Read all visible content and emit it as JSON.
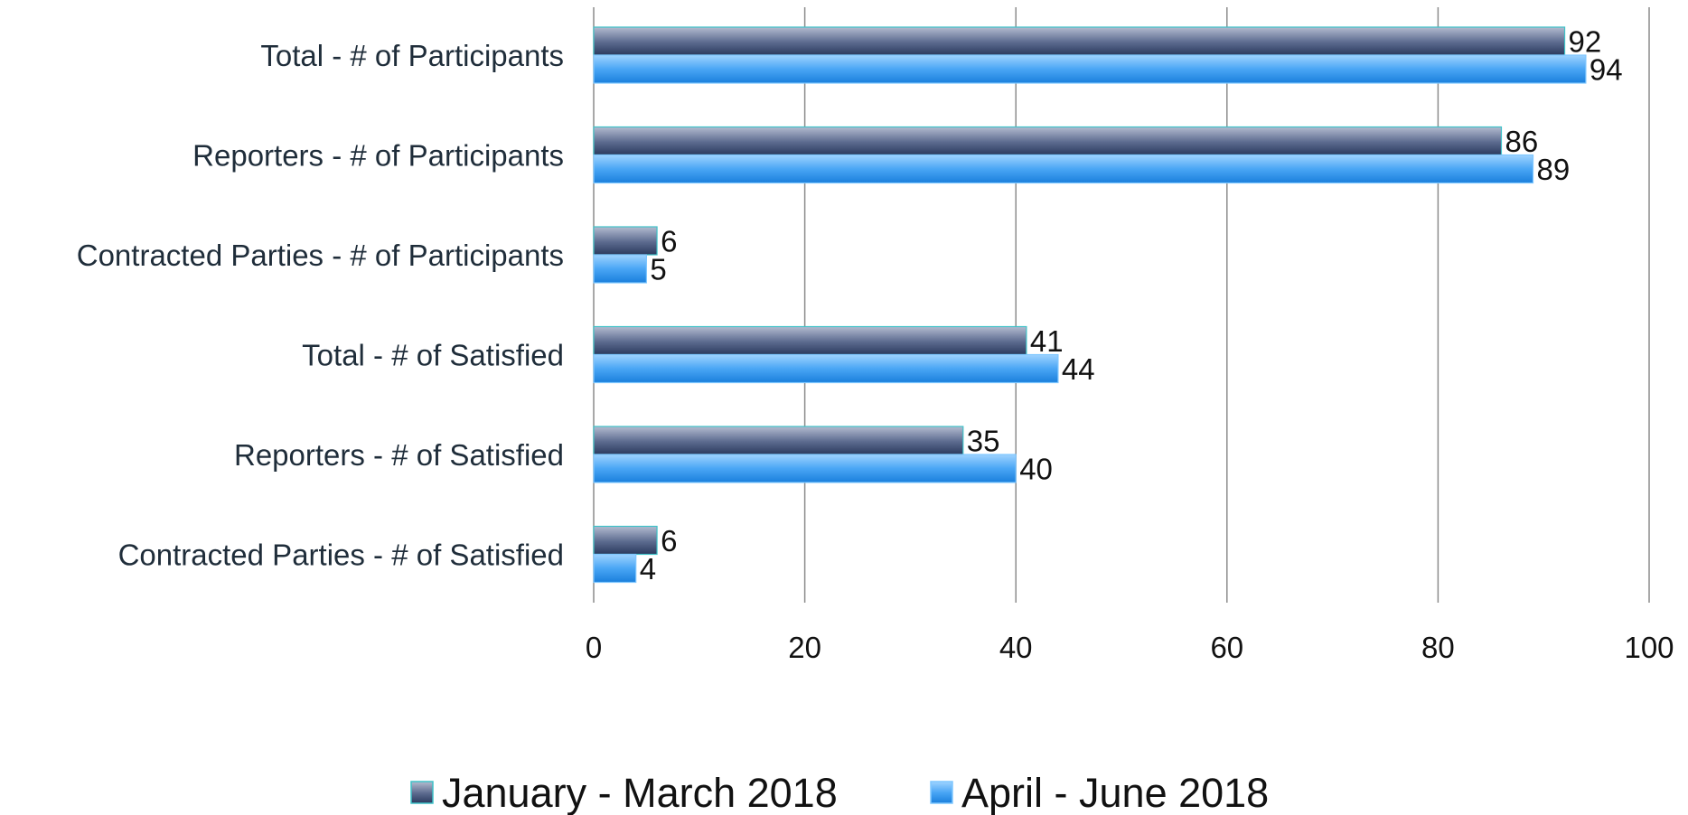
{
  "chart_data": {
    "type": "bar",
    "orientation": "horizontal",
    "categories": [
      "Total - # of Participants",
      "Reporters - # of Participants",
      "Contracted Parties - # of Participants",
      "Total - # of Satisfied",
      "Reporters - # of Satisfied",
      "Contracted Parties - # of Satisfied"
    ],
    "series": [
      {
        "name": "January - March 2018",
        "values": [
          92,
          86,
          6,
          41,
          35,
          6
        ],
        "color": "#5a6a8f"
      },
      {
        "name": "April - June 2018",
        "values": [
          94,
          89,
          5,
          44,
          40,
          4
        ],
        "color": "#2f8ee8"
      }
    ],
    "xlim": [
      0,
      100
    ],
    "xticks": [
      0,
      20,
      40,
      60,
      80,
      100
    ],
    "grid": true,
    "legend_position": "bottom",
    "data_labels": true
  }
}
